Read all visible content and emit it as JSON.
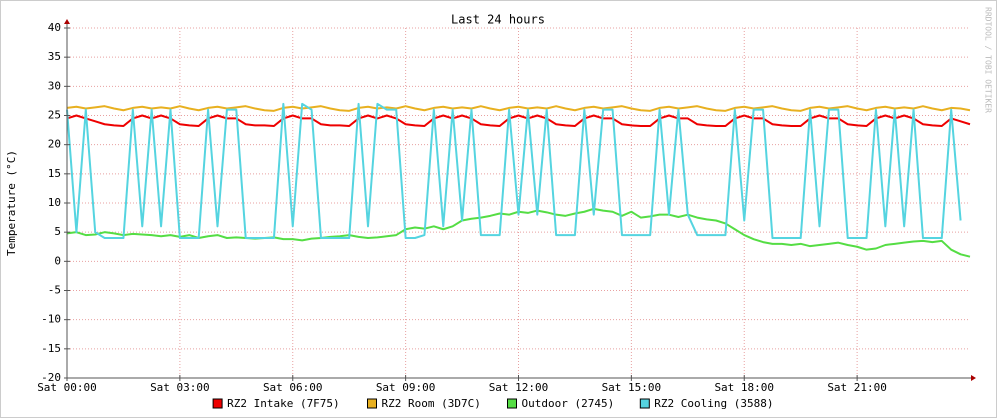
{
  "chart_data": {
    "type": "line",
    "title": "Last 24 hours",
    "ylabel": "Temperature (°C)",
    "watermark": "RRDTOOL / TOBI OETIKER",
    "xlim": [
      0,
      24
    ],
    "xticks": [
      {
        "value": 0,
        "label": "Sat 00:00"
      },
      {
        "value": 3,
        "label": "Sat 03:00"
      },
      {
        "value": 6,
        "label": "Sat 06:00"
      },
      {
        "value": 9,
        "label": "Sat 09:00"
      },
      {
        "value": 12,
        "label": "Sat 12:00"
      },
      {
        "value": 15,
        "label": "Sat 15:00"
      },
      {
        "value": 18,
        "label": "Sat 18:00"
      },
      {
        "value": 21,
        "label": "Sat 21:00"
      }
    ],
    "ylim": [
      -20,
      40
    ],
    "yticks": [
      -20,
      -15,
      -10,
      -5,
      0,
      5,
      10,
      15,
      20,
      25,
      30,
      35,
      40
    ],
    "grid": true,
    "x": [
      0,
      0.25,
      0.5,
      0.75,
      1,
      1.25,
      1.5,
      1.75,
      2,
      2.25,
      2.5,
      2.75,
      3,
      3.25,
      3.5,
      3.75,
      4,
      4.25,
      4.5,
      4.75,
      5,
      5.25,
      5.5,
      5.75,
      6,
      6.25,
      6.5,
      6.75,
      7,
      7.25,
      7.5,
      7.75,
      8,
      8.25,
      8.5,
      8.75,
      9,
      9.25,
      9.5,
      9.75,
      10,
      10.25,
      10.5,
      10.75,
      11,
      11.25,
      11.5,
      11.75,
      12,
      12.25,
      12.5,
      12.75,
      13,
      13.25,
      13.5,
      13.75,
      14,
      14.25,
      14.5,
      14.75,
      15,
      15.25,
      15.5,
      15.75,
      16,
      16.25,
      16.5,
      16.75,
      17,
      17.25,
      17.5,
      17.75,
      18,
      18.25,
      18.5,
      18.75,
      19,
      19.25,
      19.5,
      19.75,
      20,
      20.25,
      20.5,
      20.75,
      21,
      21.25,
      21.5,
      21.75,
      22,
      22.25,
      22.5,
      22.75,
      23,
      23.25,
      23.5,
      23.75,
      24
    ],
    "series": [
      {
        "name": "RZ2 Intake (7F75)",
        "color": "#ee0000",
        "values": [
          24.5,
          25,
          24.5,
          24,
          23.5,
          23.3,
          23.2,
          24.5,
          25,
          24.5,
          25,
          24.5,
          23.5,
          23.3,
          23.2,
          24.5,
          25,
          24.5,
          24.5,
          23.5,
          23.3,
          23.3,
          23.2,
          24.5,
          25,
          24.5,
          24.5,
          23.5,
          23.3,
          23.3,
          23.2,
          24.5,
          25,
          24.5,
          25,
          24.5,
          23.5,
          23.3,
          23.2,
          24.5,
          25,
          24.5,
          25,
          24.5,
          23.5,
          23.3,
          23.2,
          24.5,
          25,
          24.5,
          25,
          24.5,
          23.5,
          23.3,
          23.2,
          24.5,
          25,
          24.5,
          24.5,
          23.5,
          23.3,
          23.2,
          23.2,
          24.5,
          25,
          24.5,
          24.5,
          23.5,
          23.3,
          23.2,
          23.2,
          24.5,
          25,
          24.5,
          24.5,
          23.5,
          23.3,
          23.2,
          23.2,
          24.5,
          25,
          24.5,
          24.5,
          23.5,
          23.3,
          23.2,
          24.5,
          25,
          24.5,
          25,
          24.5,
          23.5,
          23.3,
          23.2,
          24.5,
          24,
          23.5
        ]
      },
      {
        "name": "RZ2 Room (3D7C)",
        "color": "#e8b020",
        "values": [
          26.3,
          26.5,
          26.2,
          26.4,
          26.6,
          26.2,
          25.9,
          26.3,
          26.5,
          26.2,
          26.4,
          26.2,
          26.6,
          26.2,
          25.9,
          26.3,
          26.5,
          26.2,
          26.4,
          26.6,
          26.2,
          25.9,
          25.8,
          26.3,
          26.5,
          26.2,
          26.4,
          26.6,
          26.2,
          25.9,
          25.8,
          26.3,
          26.5,
          26.2,
          26.4,
          26.2,
          26.6,
          26.2,
          25.9,
          26.3,
          26.5,
          26.2,
          26.4,
          26.2,
          26.6,
          26.2,
          25.9,
          26.3,
          26.5,
          26.2,
          26.4,
          26.2,
          26.6,
          26.2,
          25.9,
          26.3,
          26.5,
          26.2,
          26.4,
          26.6,
          26.2,
          25.9,
          25.8,
          26.3,
          26.5,
          26.2,
          26.4,
          26.6,
          26.2,
          25.9,
          25.8,
          26.3,
          26.5,
          26.2,
          26.4,
          26.6,
          26.2,
          25.9,
          25.8,
          26.3,
          26.5,
          26.2,
          26.4,
          26.6,
          26.2,
          25.9,
          26.3,
          26.5,
          26.2,
          26.4,
          26.2,
          26.6,
          26.2,
          25.9,
          26.3,
          26.2,
          25.9
        ]
      },
      {
        "name": "Outdoor (2745)",
        "color": "#55dd44",
        "values": [
          4.8,
          5,
          4.5,
          4.6,
          5,
          4.8,
          4.5,
          4.7,
          4.6,
          4.5,
          4.3,
          4.5,
          4.2,
          4.5,
          4,
          4.3,
          4.5,
          4,
          4.1,
          4,
          3.9,
          4,
          4.1,
          3.8,
          3.8,
          3.6,
          3.9,
          4,
          4.2,
          4.3,
          4.5,
          4.2,
          4,
          4.1,
          4.3,
          4.5,
          5.5,
          5.8,
          5.6,
          6,
          5.5,
          6,
          7,
          7.3,
          7.5,
          7.8,
          8.2,
          8,
          8.5,
          8.3,
          8.7,
          8.4,
          8,
          7.8,
          8.2,
          8.5,
          9,
          8.7,
          8.5,
          7.8,
          8.5,
          7.5,
          7.7,
          8,
          8,
          7.6,
          8,
          7.5,
          7.2,
          7,
          6.5,
          5.5,
          4.5,
          3.8,
          3.3,
          3,
          3,
          2.8,
          3,
          2.6,
          2.8,
          3,
          3.2,
          2.8,
          2.5,
          2,
          2.2,
          2.8,
          3,
          3.2,
          3.4,
          3.5,
          3.3,
          3.5,
          2,
          1.2,
          0.8
        ]
      },
      {
        "name": "RZ2 Cooling (3588)",
        "color": "#55d4e0",
        "values": [
          26,
          5,
          26,
          5,
          4,
          4,
          4,
          26,
          6,
          26,
          6,
          26,
          4,
          4,
          4,
          26,
          6,
          26,
          26,
          4,
          4,
          4,
          4,
          27,
          6,
          27,
          26,
          4,
          4,
          4,
          4,
          27,
          6,
          27,
          26,
          26,
          4,
          4,
          4.5,
          26,
          6,
          26,
          7,
          26,
          4.5,
          4.5,
          4.5,
          26,
          8,
          26,
          8,
          26,
          4.5,
          4.5,
          4.5,
          26,
          8,
          26,
          26,
          4.5,
          4.5,
          4.5,
          4.5,
          26,
          8,
          26,
          8,
          4.5,
          4.5,
          4.5,
          4.5,
          26,
          7,
          26,
          26,
          4,
          4,
          4,
          4,
          26,
          6,
          26,
          26,
          4,
          4,
          4,
          26,
          6,
          26,
          6,
          26,
          4,
          4,
          4,
          26,
          7,
          null
        ]
      }
    ]
  }
}
